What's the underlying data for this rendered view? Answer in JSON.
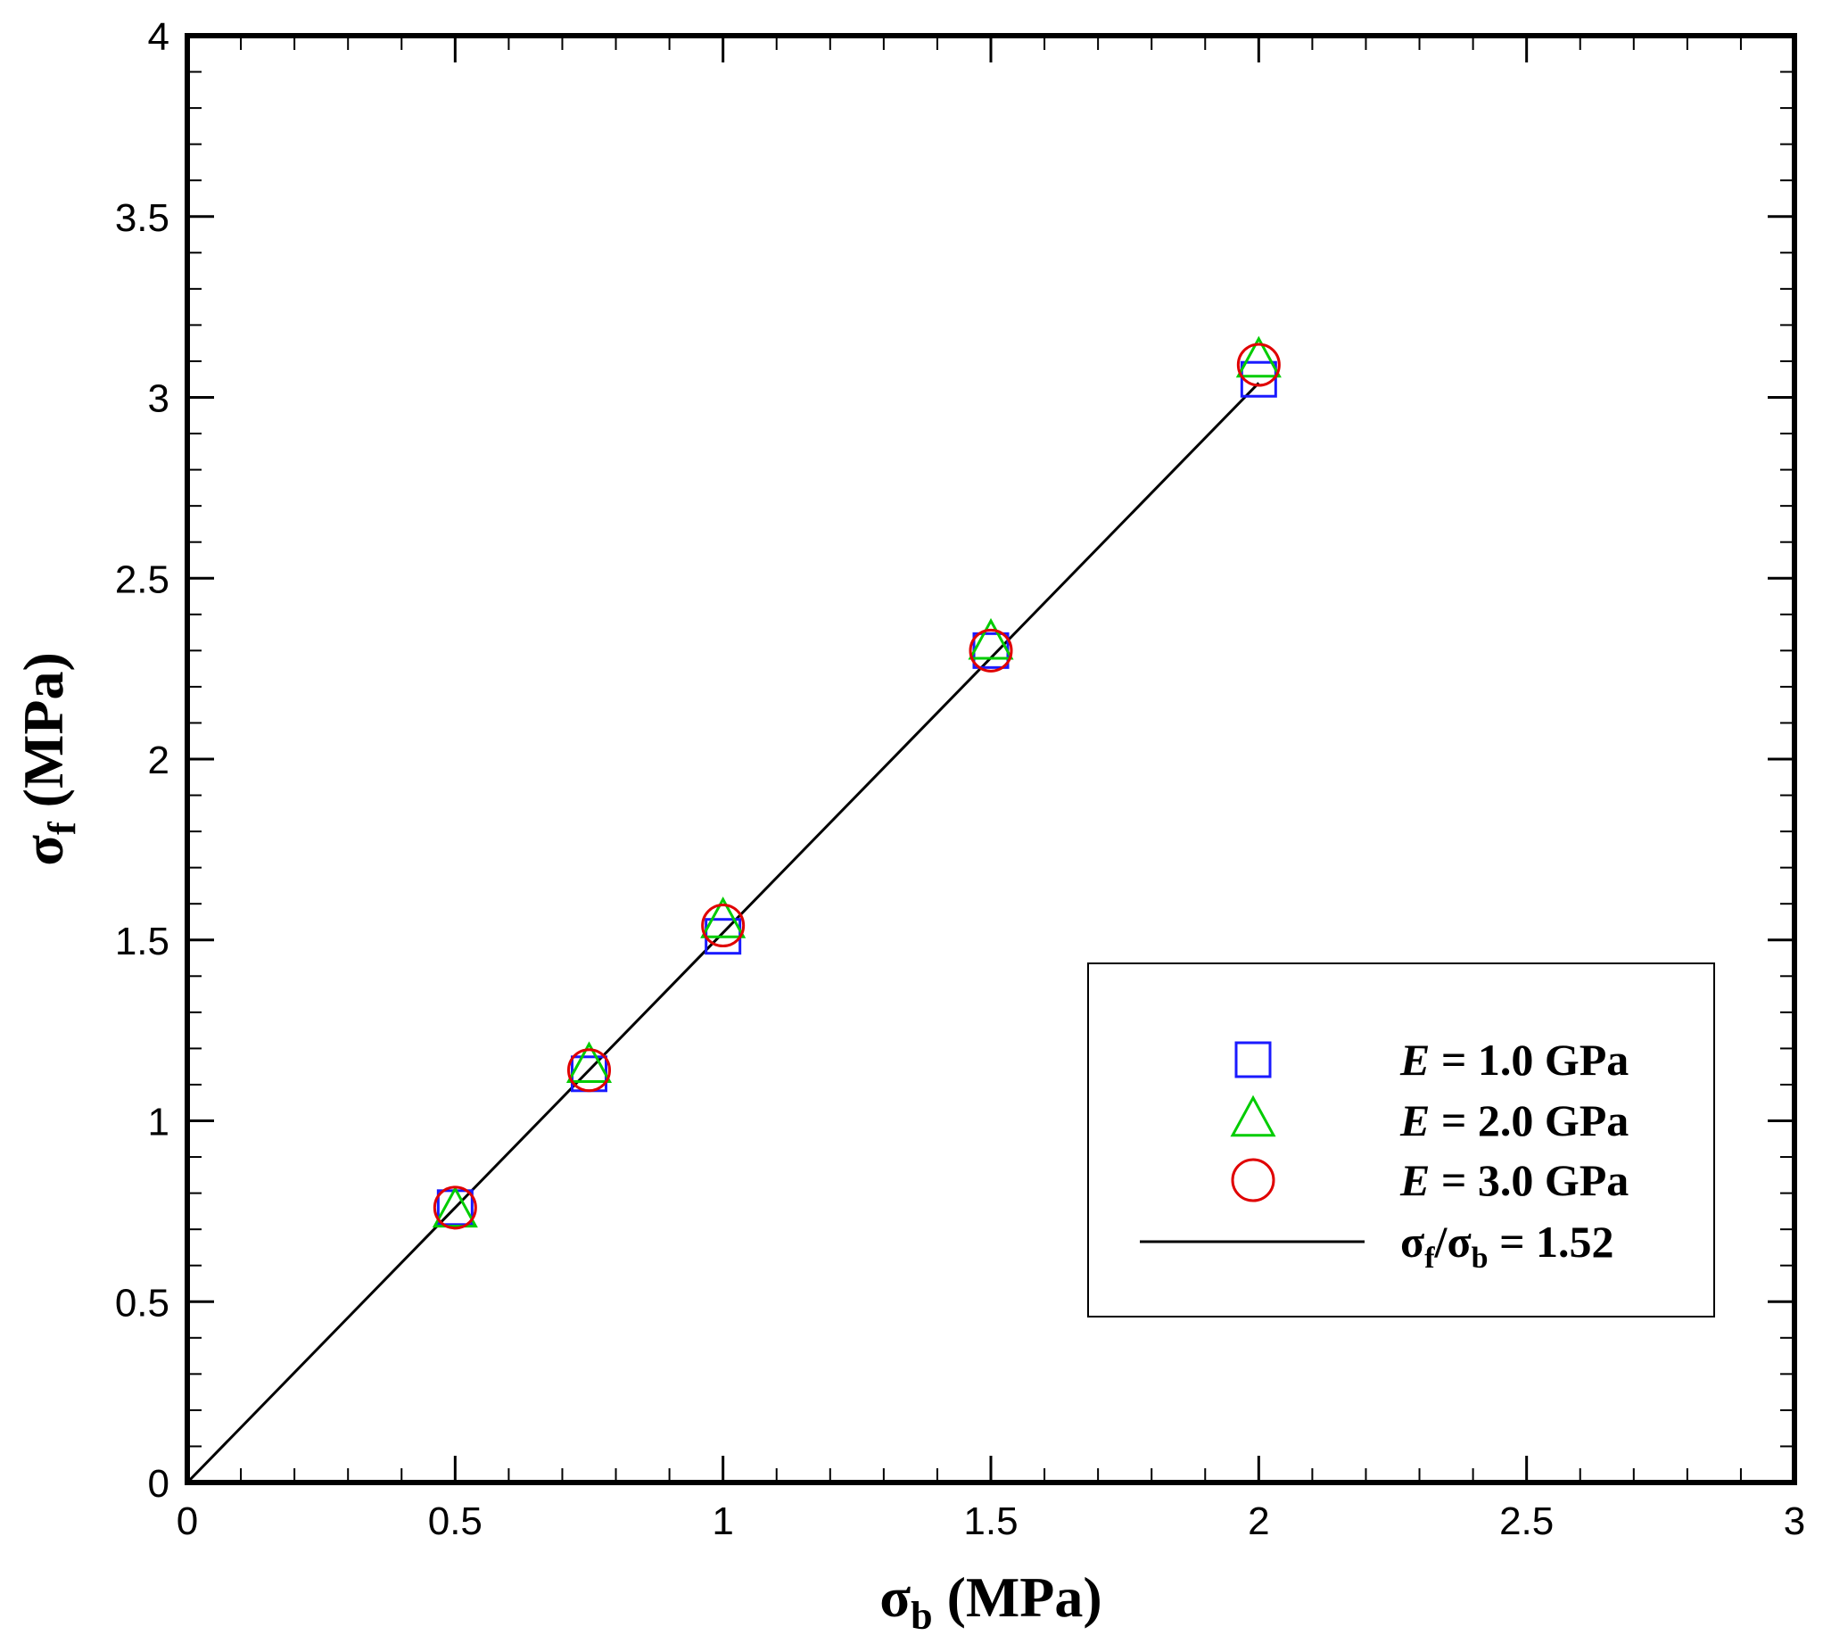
{
  "chart_data": {
    "type": "scatter",
    "xlabel": {
      "symbol": "σ",
      "sub": "b",
      "unit": " (MPa)"
    },
    "ylabel": {
      "symbol": "σ",
      "sub": "f",
      "unit": " (MPa)"
    },
    "xlim": [
      0,
      3
    ],
    "ylim": [
      0,
      4
    ],
    "x_ticks": [
      0,
      0.5,
      1,
      1.5,
      2,
      2.5,
      3
    ],
    "x_tick_labels": [
      "0",
      "0.5",
      "1",
      "1.5",
      "2",
      "2.5",
      "3"
    ],
    "y_ticks": [
      0,
      0.5,
      1,
      1.5,
      2,
      2.5,
      3,
      3.5,
      4
    ],
    "y_tick_labels": [
      "0",
      "0.5",
      "1",
      "1.5",
      "2",
      "2.5",
      "3",
      "3.5",
      "4"
    ],
    "x_minor_step": 0.1,
    "y_minor_step": 0.1,
    "grid": false,
    "legend_position": "bottom-right",
    "series": [
      {
        "name": "E = 1.0 GPa",
        "marker": "square",
        "color": "#1a1aff",
        "x": [
          0.5,
          0.75,
          1.0,
          1.5,
          2.0
        ],
        "y": [
          0.76,
          1.13,
          1.51,
          2.3,
          3.05
        ]
      },
      {
        "name": "E = 2.0 GPa",
        "marker": "triangle",
        "color": "#00cc00",
        "x": [
          0.5,
          0.75,
          1.0,
          1.5,
          2.0
        ],
        "y": [
          0.75,
          1.15,
          1.55,
          2.32,
          3.1
        ]
      },
      {
        "name": "E = 3.0 GPa",
        "marker": "circle",
        "color": "#e00000",
        "x": [
          0.5,
          0.75,
          1.0,
          1.5,
          2.0
        ],
        "y": [
          0.76,
          1.14,
          1.54,
          2.3,
          3.09
        ]
      }
    ],
    "fit_line": {
      "name": "σf/σb = 1.52",
      "slope": 1.52,
      "x_range": [
        0,
        2.0
      ],
      "color": "#000000"
    },
    "legend": [
      {
        "marker": "square",
        "color": "#1a1aff",
        "italic": "E",
        "rest": " = 1.0 GPa"
      },
      {
        "marker": "triangle",
        "color": "#00cc00",
        "italic": "E",
        "rest": " = 2.0 GPa"
      },
      {
        "marker": "circle",
        "color": "#e00000",
        "italic": "E",
        "rest": " = 3.0 GPa"
      },
      {
        "marker": "line",
        "color": "#000000",
        "num": "σ",
        "num_sub": "f",
        "slash": "/",
        "den": "σ",
        "den_sub": "b",
        "rest": " = 1.52"
      }
    ]
  }
}
